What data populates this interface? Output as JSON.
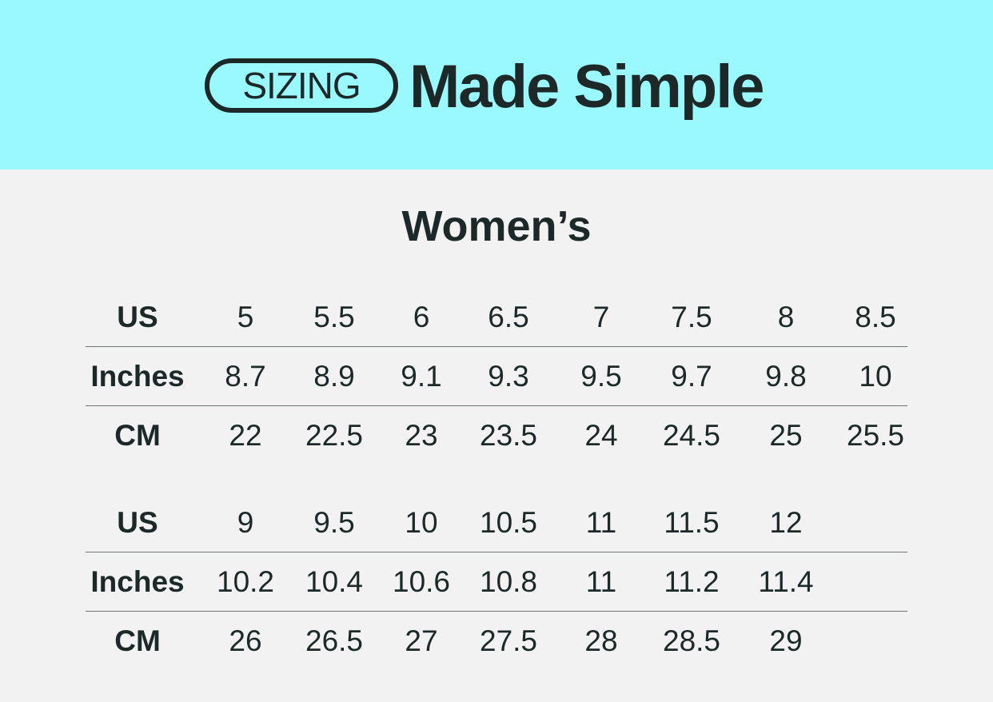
{
  "header": {
    "badge": "SIZING",
    "headline": "Made Simple",
    "background": "#9af8ff"
  },
  "title": "Women’s",
  "tables": [
    {
      "rows": [
        {
          "label": "US",
          "values": [
            "5",
            "5.5",
            "6",
            "6.5",
            "7",
            "7.5",
            "8",
            "8.5"
          ]
        },
        {
          "label": "Inches",
          "values": [
            "8.7",
            "8.9",
            "9.1",
            "9.3",
            "9.5",
            "9.7",
            "9.8",
            "10"
          ]
        },
        {
          "label": "CM",
          "values": [
            "22",
            "22.5",
            "23",
            "23.5",
            "24",
            "24.5",
            "25",
            "25.5"
          ]
        }
      ]
    },
    {
      "rows": [
        {
          "label": "US",
          "values": [
            "9",
            "9.5",
            "10",
            "10.5",
            "11",
            "11.5",
            "12"
          ]
        },
        {
          "label": "Inches",
          "values": [
            "10.2",
            "10.4",
            "10.6",
            "10.8",
            "11",
            "11.2",
            "11.4"
          ]
        },
        {
          "label": "CM",
          "values": [
            "26",
            "26.5",
            "27",
            "27.5",
            "28",
            "28.5",
            "29"
          ]
        }
      ]
    }
  ]
}
